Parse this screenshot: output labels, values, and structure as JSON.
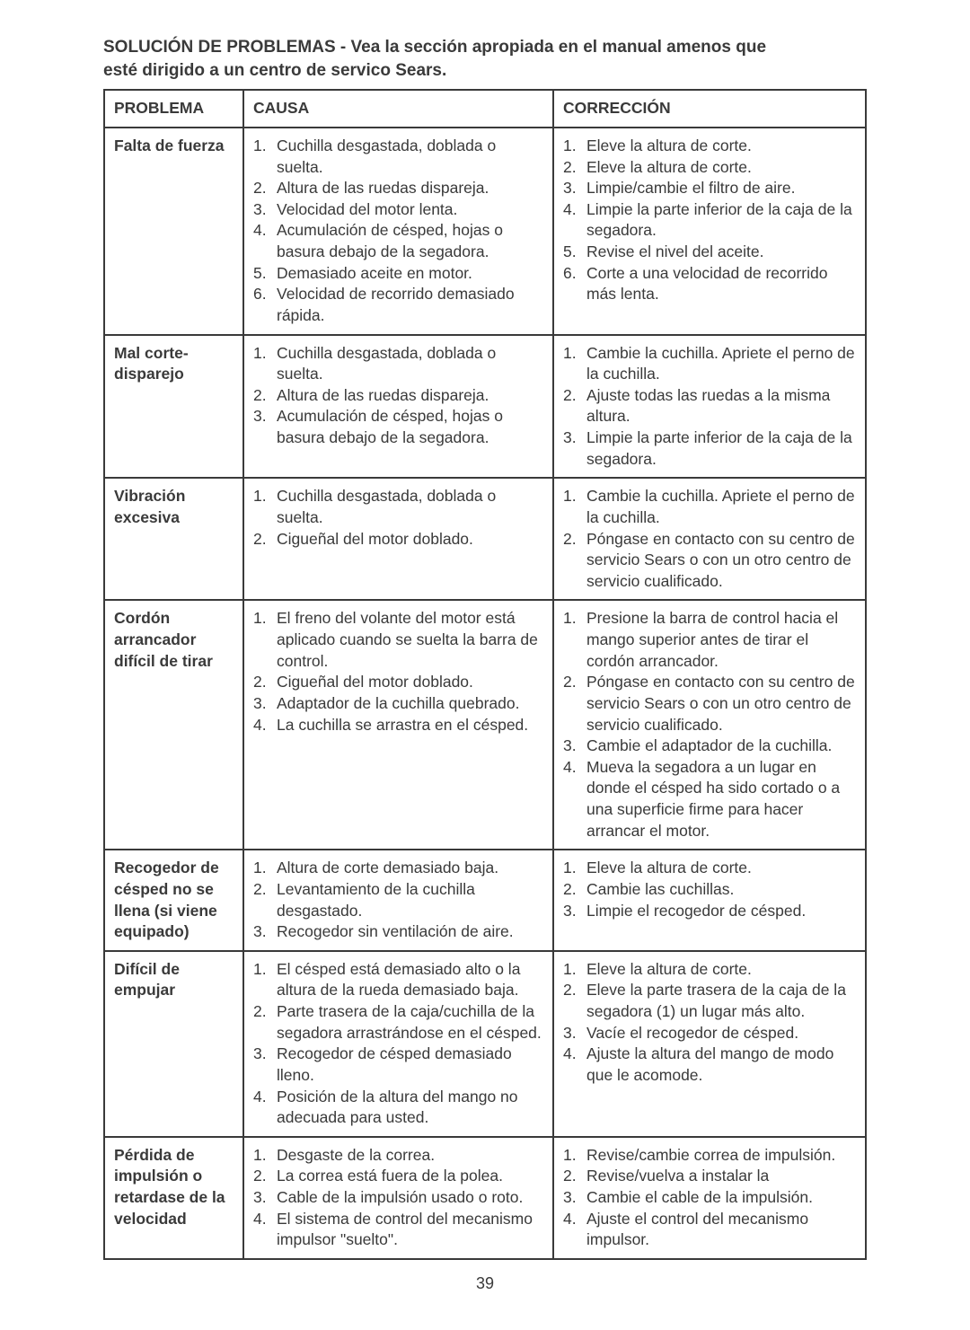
{
  "title_line1": "SOLUCIÓN DE PROBLEMAS - Vea la sección apropiada en el manual amenos que",
  "title_line2": "esté dirigido a un centro de servico Sears.",
  "headers": {
    "problema": "PROBLEMA",
    "causa": "CAUSA",
    "correccion": "CORRECCIÓN"
  },
  "rows": [
    {
      "problema": "Falta de fuerza",
      "causa": [
        "Cuchilla desgastada, doblada o suelta.",
        "Altura de las ruedas dispareja.",
        "Velocidad del motor lenta.",
        "Acumulación de césped, hojas o basura debajo de la segadora.",
        "Demasiado aceite en motor.",
        "Velocidad de recorrido demasiado rápida."
      ],
      "correccion": [
        "Eleve la altura de corte.",
        "Eleve la altura de corte.",
        "Limpie/cambie el filtro de aire.",
        "Limpie la parte inferior de la caja de la segadora.",
        "Revise el nivel del aceite.",
        "Corte a una velocidad de recorrido más lenta."
      ]
    },
    {
      "problema": "Mal corte- disparejo",
      "causa": [
        "Cuchilla desgastada, doblada o suelta.",
        "Altura de las ruedas dispareja.",
        "Acumulación de césped, hojas o basura debajo de la segadora."
      ],
      "correccion": [
        "Cambie la cuchilla. Apriete el perno de la cuchilla.",
        "Ajuste todas las ruedas a la misma altura.",
        "Limpie la parte inferior de la caja de la segadora."
      ]
    },
    {
      "problema": "Vibración excesiva",
      "causa": [
        "Cuchilla desgastada, doblada o suelta.",
        "Cigueñal del motor doblado."
      ],
      "correccion": [
        "Cambie la cuchilla. Apriete el perno de la cuchilla.",
        "Póngase en contacto con su centro de servicio Sears o con un otro centro de servicio cualificado."
      ]
    },
    {
      "problema": "Cordón arrancador difícil de tirar",
      "causa": [
        "El freno del volante del motor está aplicado cuando se suelta la barra de control.",
        "Cigueñal del motor doblado.",
        "Adaptador de la cuchilla quebrado.",
        "La cuchilla se arrastra en el césped."
      ],
      "correccion": [
        "Presione la barra de control hacia el mango superior antes de tirar el cordón arrancador.",
        "Póngase en contacto con su centro de servicio Sears o con un otro centro de servicio cualificado.",
        "Cambie el adaptador de la cuchilla.",
        "Mueva la segadora a un lugar en donde el césped ha sido cortado o a una superficie firme para hacer arrancar el motor."
      ]
    },
    {
      "problema": "Recogedor de césped no se llena (si viene equipado)",
      "causa": [
        "Altura de corte demasiado baja.",
        "Levantamiento de la cuchilla desgastado.",
        "Recogedor sin ventilación de aire."
      ],
      "correccion": [
        "Eleve la altura de corte.",
        "Cambie las cuchillas.",
        "Limpie el recogedor de césped."
      ]
    },
    {
      "problema": "Difícil de empujar",
      "causa": [
        "El césped está demasiado alto o la altura de la rueda demasiado baja.",
        "Parte trasera de la caja/cuchilla de la segadora arrastrándose en el césped.",
        "Recogedor de césped demasiado lleno.",
        "Posición de la altura del mango no adecuada para usted."
      ],
      "correccion": [
        "Eleve la altura de corte.",
        "Eleve la parte trasera de la caja de la segadora (1) un lugar más alto.",
        "Vacíe el recogedor de césped.",
        "Ajuste la altura del mango de modo que le acomode."
      ]
    },
    {
      "problema": "Pérdida de impulsión o retardase de la velocidad",
      "causa": [
        "Desgaste de la correa.",
        "La correa está fuera de la polea.",
        "Cable de la impulsión usado o roto.",
        "El sistema de control del mecanismo impulsor \"suelto\"."
      ],
      "correccion": [
        "Revise/cambie correa de impulsión.",
        "Revise/vuelva a instalar la",
        "Cambie el cable de la impulsión.",
        "Ajuste el control del mecanismo impulsor."
      ]
    }
  ],
  "page_number": "39"
}
